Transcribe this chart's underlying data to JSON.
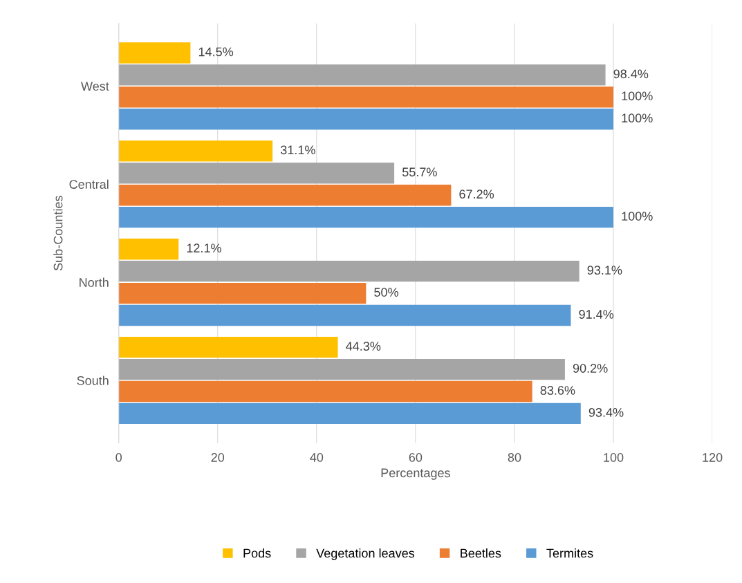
{
  "chart_data": {
    "type": "bar",
    "orientation": "horizontal",
    "xlabel": "Percentages",
    "ylabel": "Sub-Counties",
    "categories": [
      "West",
      "Central",
      "North",
      "South"
    ],
    "series": [
      {
        "name": "Pods",
        "color": "#ffc000",
        "values": [
          14.5,
          31.1,
          12.1,
          44.3
        ],
        "value_labels": [
          "14.5%",
          "31.1%",
          "12.1%",
          "44.3%"
        ]
      },
      {
        "name": "Vegetation leaves",
        "color": "#a5a5a5",
        "values": [
          98.4,
          55.7,
          93.1,
          90.2
        ],
        "value_labels": [
          "98.4%",
          "55.7%",
          "93.1%",
          "90.2%"
        ]
      },
      {
        "name": "Beetles",
        "color": "#ed7d31",
        "values": [
          100,
          67.2,
          50,
          83.6
        ],
        "value_labels": [
          "100%",
          "67.2%",
          "50%",
          "83.6%"
        ]
      },
      {
        "name": "Termites",
        "color": "#5b9bd5",
        "values": [
          100,
          100,
          91.4,
          93.4
        ],
        "value_labels": [
          "100%",
          "100%",
          "91.4%",
          "93.4%"
        ]
      }
    ],
    "xlim": [
      0,
      120
    ],
    "xticks": [
      0,
      20,
      40,
      60,
      80,
      100,
      120
    ],
    "grid": "x",
    "legend": "bottom"
  }
}
